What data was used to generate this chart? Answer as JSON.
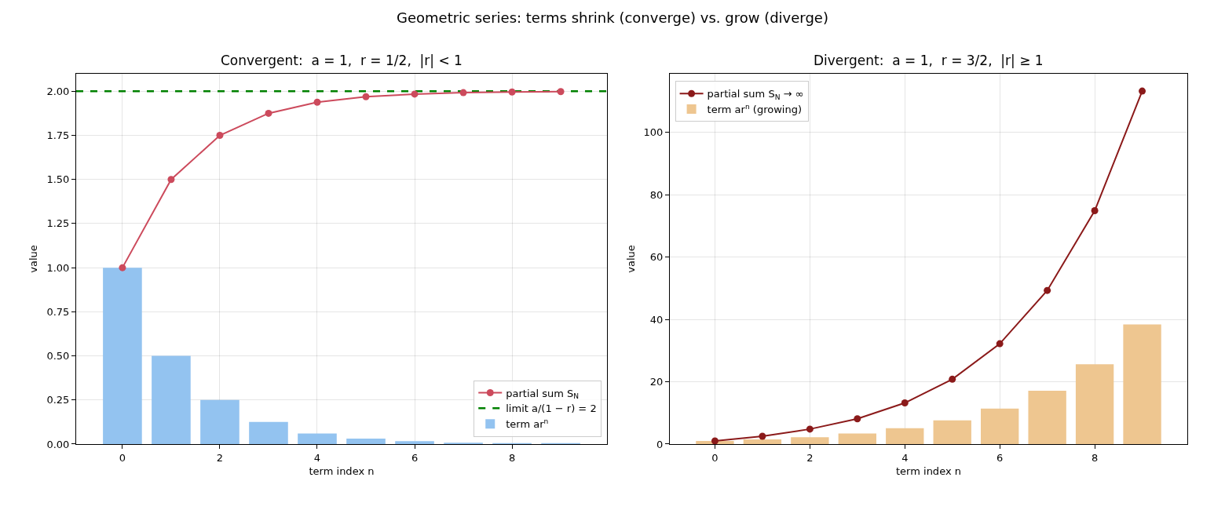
{
  "chart_data": [
    {
      "type": "bar",
      "title": "Convergent:  a = 1,  r = 1/2,  |r| < 1",
      "xlabel": "term index n",
      "ylabel": "value",
      "annotations": [
        "Geometric series: terms shrink (converge) vs. grow (diverge)"
      ],
      "x": [
        0,
        1,
        2,
        3,
        4,
        5,
        6,
        7,
        8,
        9
      ],
      "series": [
        {
          "name": "partial sum S$_{N}$",
          "type": "line",
          "color": "#cc4a5c",
          "values": [
            1.0,
            1.5,
            1.75,
            1.875,
            1.938,
            1.969,
            1.984,
            1.992,
            1.996,
            1.998
          ]
        },
        {
          "name": "term ar$^{n}$",
          "color": "#93c3f0",
          "values": [
            1.0,
            0.5,
            0.25,
            0.125,
            0.06,
            0.031,
            0.016,
            0.008,
            0.004,
            0.002
          ]
        }
      ],
      "ref_lines": [
        {
          "axis": "y",
          "value": 2,
          "label": "limit a/(1 − r) = 2",
          "color": "#008000",
          "line_style": "dashed"
        }
      ],
      "xlim": [
        -0.95,
        9.95
      ],
      "xticks": [
        0,
        2,
        4,
        6,
        8
      ],
      "ylim": [
        0,
        2.1
      ],
      "yticks": [
        {
          "value": 0,
          "label": "0.00"
        },
        {
          "value": 0.25,
          "label": "0.25"
        },
        {
          "value": 0.5,
          "label": "0.50"
        },
        {
          "value": 0.75,
          "label": "0.75"
        },
        {
          "value": 1,
          "label": "1.00"
        },
        {
          "value": 1.25,
          "label": "1.25"
        },
        {
          "value": 1.5,
          "label": "1.50"
        },
        {
          "value": 1.75,
          "label": "1.75"
        },
        {
          "value": 2,
          "label": "2.00"
        }
      ],
      "grid": true,
      "legend": "bottom right",
      "marker": "circle"
    },
    {
      "type": "bar",
      "title": "Divergent:  a = 1,  r = 3/2,  |r| ≥ 1",
      "xlabel": "term index n",
      "ylabel": "value",
      "x": [
        0,
        1,
        2,
        3,
        4,
        5,
        6,
        7,
        8,
        9
      ],
      "series": [
        {
          "name": "partial sum S$_{N}$ → ∞",
          "type": "line",
          "color": "#8b1a1a",
          "values": [
            1.0,
            2.5,
            4.8,
            8.1,
            13.2,
            20.8,
            32.2,
            49.3,
            74.9,
            113.3
          ]
        },
        {
          "name": "term ar$^{n}$ (growing)",
          "color": "#eec690",
          "values": [
            1.0,
            1.5,
            2.2,
            3.4,
            5.1,
            7.6,
            11.4,
            17.1,
            25.6,
            38.4
          ]
        }
      ],
      "xlim": [
        -0.95,
        9.95
      ],
      "xticks": [
        0,
        2,
        4,
        6,
        8
      ],
      "ylim": [
        0,
        118.9
      ],
      "yticks": [
        0,
        20,
        40,
        60,
        80,
        100
      ],
      "grid": true,
      "legend": "top left",
      "marker": "circle"
    }
  ]
}
